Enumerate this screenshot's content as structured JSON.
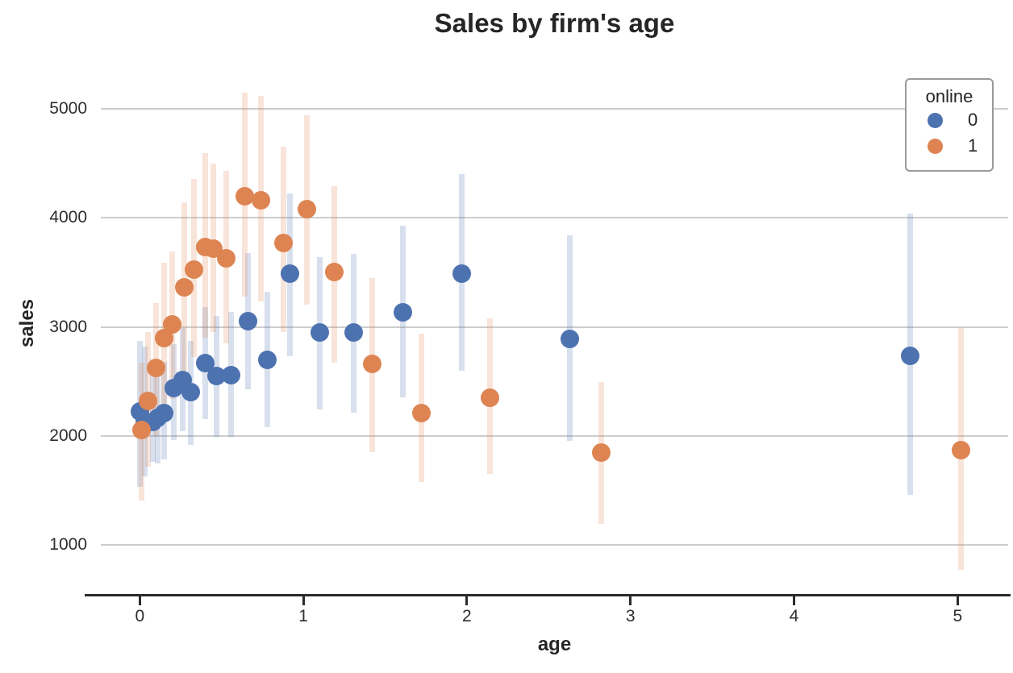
{
  "chart_data": {
    "type": "scatter",
    "title": "Sales by firm's age",
    "xlabel": "age",
    "ylabel": "sales",
    "x_ticks": [
      0,
      1,
      2,
      3,
      4,
      5
    ],
    "y_ticks": [
      1000,
      2000,
      3000,
      4000,
      5000
    ],
    "xlim": [
      -0.24,
      5.31
    ],
    "ylim": [
      550,
      5330
    ],
    "grid": "horizontal",
    "error_bars": "vertical confidence intervals",
    "legend": {
      "title": "online",
      "position": "upper right",
      "entries": [
        {
          "label": "0",
          "color": "#4C72B0"
        },
        {
          "label": "1",
          "color": "#DD8452"
        }
      ]
    },
    "series": [
      {
        "name": "0",
        "color": "#4C72B0",
        "points": [
          {
            "x": 0.0,
            "y": 2220,
            "lo": 1530,
            "hi": 2870
          },
          {
            "x": 0.03,
            "y": 2130,
            "lo": 1630,
            "hi": 2820
          },
          {
            "x": 0.08,
            "y": 2125,
            "lo": 1760,
            "hi": 2700
          },
          {
            "x": 0.11,
            "y": 2165,
            "lo": 1750,
            "hi": 2690
          },
          {
            "x": 0.15,
            "y": 2210,
            "lo": 1780,
            "hi": 2680
          },
          {
            "x": 0.21,
            "y": 2440,
            "lo": 1960,
            "hi": 2840
          },
          {
            "x": 0.26,
            "y": 2510,
            "lo": 2040,
            "hi": 2990
          },
          {
            "x": 0.31,
            "y": 2400,
            "lo": 1920,
            "hi": 2870
          },
          {
            "x": 0.4,
            "y": 2670,
            "lo": 2150,
            "hi": 3180
          },
          {
            "x": 0.47,
            "y": 2550,
            "lo": 1990,
            "hi": 3100
          },
          {
            "x": 0.56,
            "y": 2555,
            "lo": 1990,
            "hi": 3140
          },
          {
            "x": 0.66,
            "y": 3050,
            "lo": 2430,
            "hi": 3680
          },
          {
            "x": 0.78,
            "y": 2700,
            "lo": 2080,
            "hi": 3320
          },
          {
            "x": 0.92,
            "y": 3490,
            "lo": 2730,
            "hi": 4220
          },
          {
            "x": 1.1,
            "y": 2950,
            "lo": 2240,
            "hi": 3640
          },
          {
            "x": 1.31,
            "y": 2950,
            "lo": 2210,
            "hi": 3670
          },
          {
            "x": 1.61,
            "y": 3130,
            "lo": 2350,
            "hi": 3930
          },
          {
            "x": 1.97,
            "y": 3490,
            "lo": 2600,
            "hi": 4400
          },
          {
            "x": 2.63,
            "y": 2890,
            "lo": 1950,
            "hi": 3840
          },
          {
            "x": 4.71,
            "y": 2735,
            "lo": 1460,
            "hi": 4040
          }
        ]
      },
      {
        "name": "1",
        "color": "#DD8452",
        "points": [
          {
            "x": 0.01,
            "y": 2050,
            "lo": 1410,
            "hi": 2670
          },
          {
            "x": 0.05,
            "y": 2320,
            "lo": 1720,
            "hi": 2950
          },
          {
            "x": 0.1,
            "y": 2620,
            "lo": 2000,
            "hi": 3220
          },
          {
            "x": 0.15,
            "y": 2900,
            "lo": 2250,
            "hi": 3590
          },
          {
            "x": 0.2,
            "y": 3025,
            "lo": 2340,
            "hi": 3690
          },
          {
            "x": 0.27,
            "y": 3360,
            "lo": 2600,
            "hi": 4140
          },
          {
            "x": 0.33,
            "y": 3525,
            "lo": 2720,
            "hi": 4360
          },
          {
            "x": 0.4,
            "y": 3730,
            "lo": 2900,
            "hi": 4590
          },
          {
            "x": 0.45,
            "y": 3720,
            "lo": 2950,
            "hi": 4500
          },
          {
            "x": 0.53,
            "y": 3630,
            "lo": 2850,
            "hi": 4430
          },
          {
            "x": 0.64,
            "y": 4200,
            "lo": 3280,
            "hi": 5150
          },
          {
            "x": 0.74,
            "y": 4160,
            "lo": 3230,
            "hi": 5120
          },
          {
            "x": 0.88,
            "y": 3770,
            "lo": 2950,
            "hi": 4650
          },
          {
            "x": 1.02,
            "y": 4080,
            "lo": 3200,
            "hi": 4940
          },
          {
            "x": 1.19,
            "y": 3500,
            "lo": 2670,
            "hi": 4290
          },
          {
            "x": 1.42,
            "y": 2660,
            "lo": 1850,
            "hi": 3450
          },
          {
            "x": 1.72,
            "y": 2210,
            "lo": 1580,
            "hi": 2940
          },
          {
            "x": 2.14,
            "y": 2350,
            "lo": 1650,
            "hi": 3080
          },
          {
            "x": 2.82,
            "y": 1850,
            "lo": 1190,
            "hi": 2490
          },
          {
            "x": 5.02,
            "y": 1870,
            "lo": 770,
            "hi": 2990
          }
        ]
      }
    ]
  }
}
